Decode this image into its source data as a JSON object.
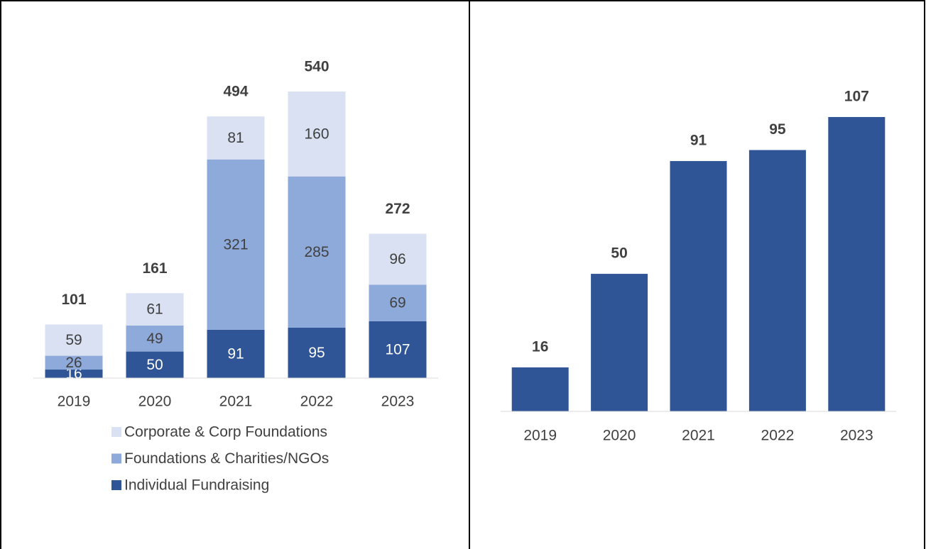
{
  "chart_data": [
    {
      "type": "stacked_bar",
      "categories": [
        "2019",
        "2020",
        "2021",
        "2022",
        "2023"
      ],
      "series": [
        {
          "name": "Individual Fundraising",
          "color": "#2f5597",
          "values": [
            16,
            50,
            91,
            95,
            107
          ]
        },
        {
          "name": "Foundations & Charities/NGOs",
          "color": "#8eaadb",
          "values": [
            26,
            49,
            321,
            285,
            69
          ]
        },
        {
          "name": "Corporate & Corp Foundations",
          "color": "#d9e1f2",
          "values": [
            59,
            61,
            81,
            160,
            96
          ]
        }
      ],
      "totals": [
        101,
        161,
        494,
        540,
        272
      ]
    },
    {
      "type": "bar",
      "categories": [
        "2019",
        "2020",
        "2021",
        "2022",
        "2023"
      ],
      "values": [
        16,
        50,
        91,
        95,
        107
      ],
      "color": "#2f5597"
    }
  ]
}
